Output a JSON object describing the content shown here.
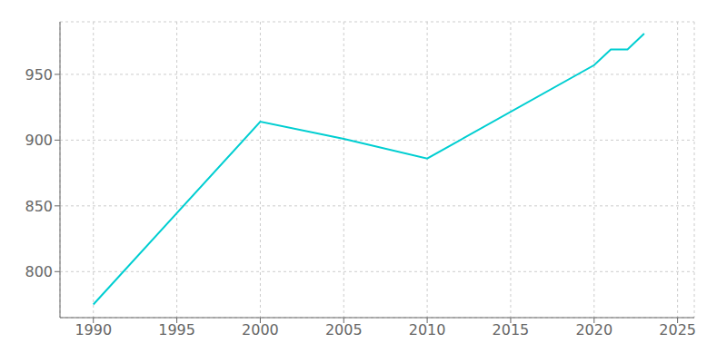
{
  "chart_data": {
    "type": "line",
    "x": [
      1990,
      2000,
      2005,
      2010,
      2020,
      2021,
      2022,
      2023
    ],
    "values": [
      775,
      914,
      901,
      886,
      957,
      969,
      969,
      981
    ],
    "color": "#00CED1",
    "xlim": [
      1988,
      2026
    ],
    "ylim": [
      765,
      990
    ],
    "xticks": [
      1990,
      1995,
      2000,
      2005,
      2010,
      2015,
      2020,
      2025
    ],
    "yticks": [
      800,
      850,
      900,
      950
    ],
    "grid": true
  }
}
